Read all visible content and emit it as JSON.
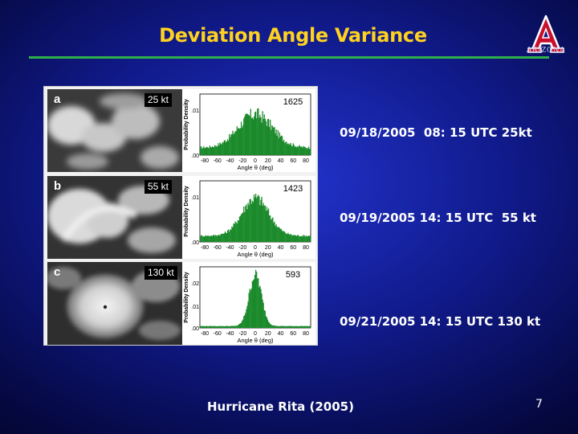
{
  "title": "Deviation Angle Variance",
  "logo_word": "ARIZONA",
  "colors": {
    "title": "#ffd21f",
    "rule": "#2fb04a",
    "histogram": "#1a8a2a",
    "logo_red": "#c8102e"
  },
  "figure": {
    "y_axis_label": "Probability Density",
    "x_axis_label": "Angle θ (deg)",
    "x_ticks": [
      "-80",
      "-60",
      "-40",
      "-20",
      "0",
      "20",
      "40",
      "60",
      "80"
    ],
    "panels": [
      {
        "letter": "a",
        "speed": "25 kt",
        "count": "1625",
        "y_ticks": [
          ".01",
          ".00"
        ]
      },
      {
        "letter": "b",
        "speed": "55 kt",
        "count": "1423",
        "y_ticks": [
          ".01",
          ".00"
        ]
      },
      {
        "letter": "c",
        "speed": "130 kt",
        "count": "593",
        "y_ticks": [
          ".02",
          ".01",
          ".00"
        ]
      }
    ]
  },
  "captions": [
    "09/18/2005  08: 15 UTC 25kt",
    "09/19/2005 14: 15 UTC  55 kt",
    "09/21/2005 14: 15 UTC 130 kt"
  ],
  "footer": "Hurricane Rita (2005)",
  "page_number": "7"
}
